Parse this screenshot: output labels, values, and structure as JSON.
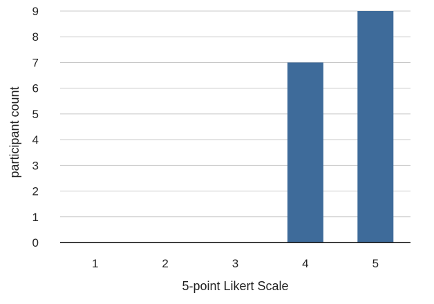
{
  "chart_data": {
    "type": "bar",
    "categories": [
      "1",
      "2",
      "3",
      "4",
      "5"
    ],
    "values": [
      0,
      0,
      0,
      7,
      9
    ],
    "title": "",
    "xlabel": "5-point Likert Scale",
    "ylabel": "participant count",
    "ylim": [
      0,
      9
    ],
    "yticks": [
      "0",
      "1",
      "2",
      "3",
      "4",
      "5",
      "6",
      "7",
      "8",
      "9"
    ],
    "grid": true,
    "bar_color": "#3e6b9a"
  }
}
